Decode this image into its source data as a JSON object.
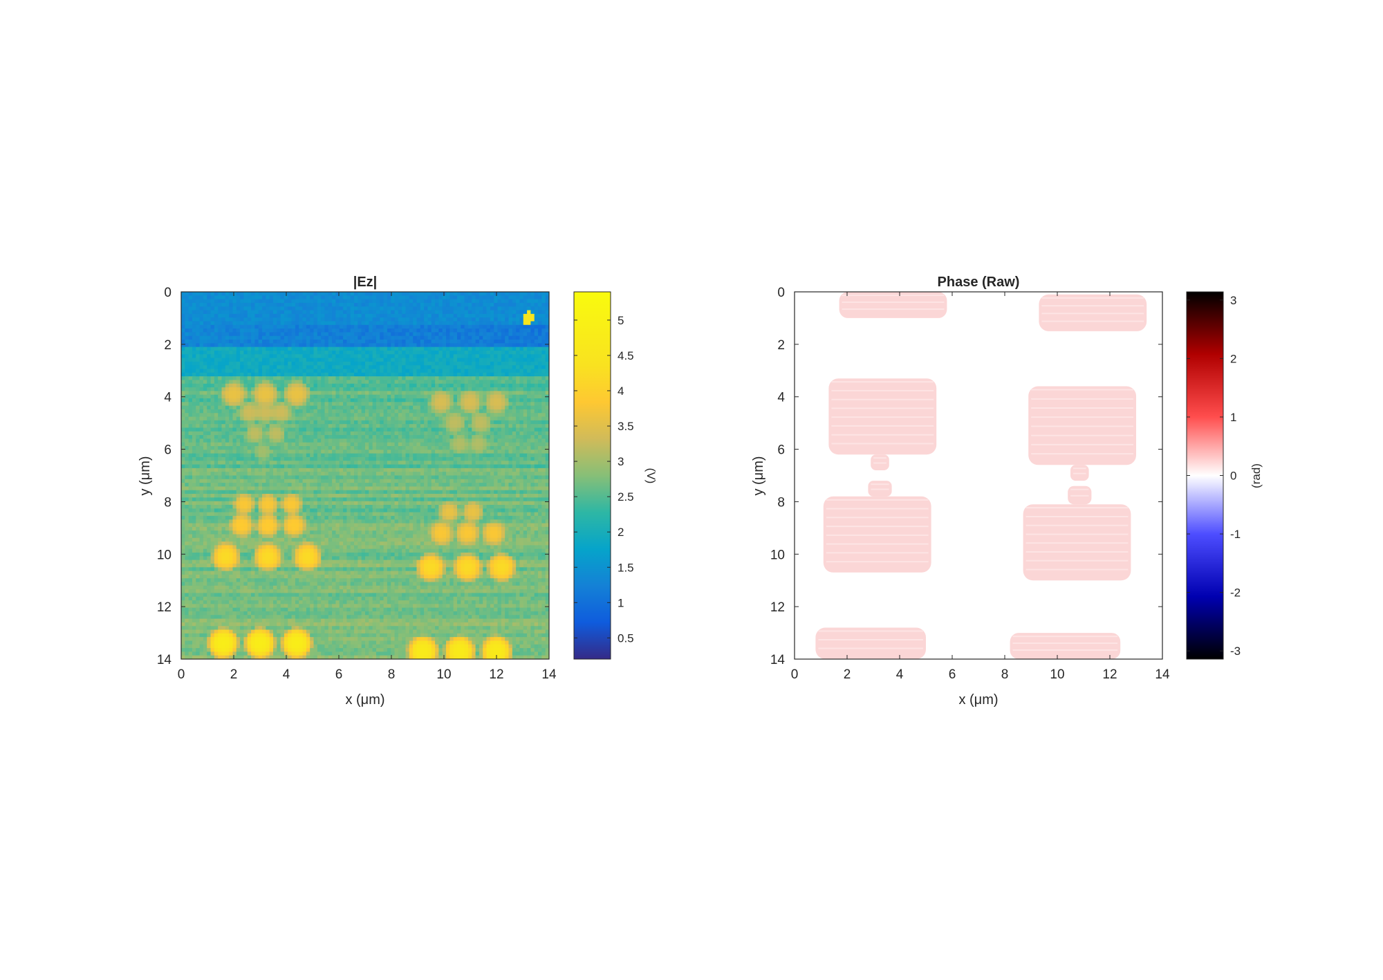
{
  "chart_data": [
    {
      "type": "heatmap",
      "title": "|Ez|",
      "xlabel": "x (μm)",
      "ylabel": "y (μm)",
      "xlim": [
        0,
        14
      ],
      "ylim": [
        0,
        14
      ],
      "y_direction": "reversed (0 at top)",
      "xticks": [
        "0",
        "2",
        "4",
        "6",
        "8",
        "10",
        "12",
        "14"
      ],
      "yticks": [
        "0",
        "2",
        "4",
        "6",
        "8",
        "10",
        "12",
        "14"
      ],
      "colormap": "parula",
      "colorbar": {
        "label": "(V)",
        "range": [
          0.2,
          5.4
        ],
        "ticks": [
          "0.5",
          "1",
          "1.5",
          "2",
          "2.5",
          "3",
          "3.5",
          "4",
          "4.5",
          "5"
        ]
      },
      "background_level": 2.6,
      "features": {
        "low_band": {
          "y": [
            1.2,
            2.1
          ],
          "value": 0.8
        },
        "top_strip_dots": {
          "y": 0.9,
          "value": 1.8
        },
        "hotspot": {
          "x": 13.2,
          "y": 1.0,
          "value": 4.5
        },
        "structures": [
          {
            "x_center": 3.2,
            "rows": [
              {
                "y": 3.9,
                "xs": [
                  2.0,
                  3.2,
                  4.4
                ],
                "r": 0.55,
                "value": 3.6
              },
              {
                "y": 4.6,
                "xs": [
                  2.6,
                  3.2,
                  3.8
                ],
                "r": 0.45,
                "value": 3.3
              },
              {
                "y": 5.4,
                "xs": [
                  2.8,
                  3.6
                ],
                "r": 0.4,
                "value": 3.2
              },
              {
                "y": 6.1,
                "xs": [
                  3.1
                ],
                "r": 0.35,
                "value": 3.0
              },
              {
                "y": 8.1,
                "xs": [
                  2.4,
                  3.3,
                  4.2
                ],
                "r": 0.45,
                "value": 3.8
              },
              {
                "y": 8.9,
                "xs": [
                  2.3,
                  3.3,
                  4.3
                ],
                "r": 0.5,
                "value": 3.9
              },
              {
                "y": 10.1,
                "xs": [
                  1.7,
                  3.3,
                  4.8
                ],
                "r": 0.6,
                "value": 4.2
              },
              {
                "y": 13.4,
                "xs": [
                  1.6,
                  3.0,
                  4.4
                ],
                "r": 0.65,
                "value": 4.8
              }
            ]
          },
          {
            "x_center": 10.9,
            "rows": [
              {
                "y": 4.2,
                "xs": [
                  9.9,
                  11.0,
                  12.0
                ],
                "r": 0.5,
                "value": 3.4
              },
              {
                "y": 5.0,
                "xs": [
                  10.4,
                  11.4
                ],
                "r": 0.45,
                "value": 3.2
              },
              {
                "y": 5.8,
                "xs": [
                  10.6,
                  11.3
                ],
                "r": 0.4,
                "value": 3.1
              },
              {
                "y": 8.4,
                "xs": [
                  10.2,
                  11.1
                ],
                "r": 0.45,
                "value": 3.6
              },
              {
                "y": 9.2,
                "xs": [
                  9.9,
                  10.9,
                  11.9
                ],
                "r": 0.5,
                "value": 3.8
              },
              {
                "y": 10.5,
                "xs": [
                  9.5,
                  10.9,
                  12.2
                ],
                "r": 0.6,
                "value": 4.2
              },
              {
                "y": 13.7,
                "xs": [
                  9.2,
                  10.6,
                  12.0
                ],
                "r": 0.65,
                "value": 4.7
              }
            ]
          }
        ]
      }
    },
    {
      "type": "heatmap",
      "title": "Phase (Raw)",
      "xlabel": "x (μm)",
      "ylabel": "y (μm)",
      "xlim": [
        0,
        14
      ],
      "ylim": [
        0,
        14
      ],
      "y_direction": "reversed (0 at top)",
      "xticks": [
        "0",
        "2",
        "4",
        "6",
        "8",
        "10",
        "12",
        "14"
      ],
      "yticks": [
        "0",
        "2",
        "4",
        "6",
        "8",
        "10",
        "12",
        "14"
      ],
      "colormap": "diverging black-blue-white-red-black",
      "colorbar": {
        "label": "(rad)",
        "range": [
          -3.14,
          3.14
        ],
        "ticks": [
          "3",
          "2",
          "1",
          "0",
          "-1",
          "-2",
          "-3"
        ]
      },
      "background_value": 0,
      "regions_value": 0.3,
      "regions": [
        {
          "x": [
            1.7,
            5.8
          ],
          "y": [
            0.0,
            1.0
          ]
        },
        {
          "x": [
            9.3,
            13.4
          ],
          "y": [
            0.1,
            1.5
          ]
        },
        {
          "x": [
            1.3,
            5.4
          ],
          "y": [
            3.3,
            6.2
          ]
        },
        {
          "x": [
            2.9,
            3.6
          ],
          "y": [
            6.2,
            6.8
          ]
        },
        {
          "x": [
            8.9,
            13.0
          ],
          "y": [
            3.6,
            6.6
          ]
        },
        {
          "x": [
            10.5,
            11.2
          ],
          "y": [
            6.6,
            7.2
          ]
        },
        {
          "x": [
            2.8,
            3.7
          ],
          "y": [
            7.2,
            7.8
          ]
        },
        {
          "x": [
            1.1,
            5.2
          ],
          "y": [
            7.8,
            10.7
          ]
        },
        {
          "x": [
            10.4,
            11.3
          ],
          "y": [
            7.4,
            8.1
          ]
        },
        {
          "x": [
            8.7,
            12.8
          ],
          "y": [
            8.1,
            11.0
          ]
        },
        {
          "x": [
            0.8,
            5.0
          ],
          "y": [
            12.8,
            14.0
          ]
        },
        {
          "x": [
            8.2,
            12.4
          ],
          "y": [
            13.0,
            14.0
          ]
        }
      ]
    }
  ]
}
